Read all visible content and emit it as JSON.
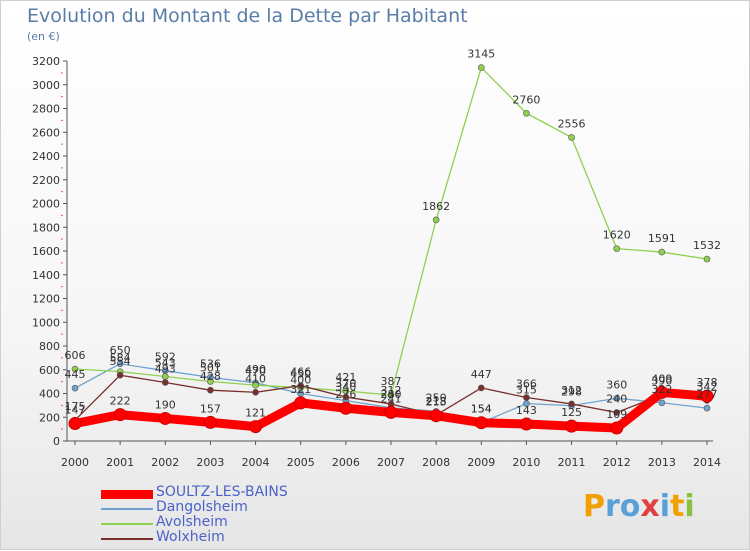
{
  "title": "Evolution du Montant de la Dette par Habitant",
  "unit_label": "(en €)",
  "logo": {
    "letters": [
      "P",
      "r",
      "o",
      "x",
      "i",
      "t",
      "i"
    ],
    "colors": [
      "#f0a000",
      "#5aa0d8",
      "#5aa0d8",
      "#e04040",
      "#5aa0d8",
      "#f0a000",
      "#8cc040"
    ]
  },
  "chart_data": {
    "type": "line",
    "title": "Evolution du Montant de la Dette par Habitant",
    "ylabel": "(en €)",
    "xlabel": "",
    "x": [
      "2000",
      "2001",
      "2002",
      "2003",
      "2004",
      "2005",
      "2006",
      "2007",
      "2008",
      "2009",
      "2010",
      "2011",
      "2012",
      "2013",
      "2014"
    ],
    "yticks": [
      0,
      200,
      400,
      600,
      800,
      1000,
      1200,
      1400,
      1600,
      1800,
      2000,
      2200,
      2400,
      2600,
      2800,
      3000,
      3200
    ],
    "ylim": [
      0,
      3200
    ],
    "grid": false,
    "legend_position": "bottom-left",
    "series": [
      {
        "name": "SOULTZ-LES-BAINS",
        "color": "#ff0000",
        "emphasis": true,
        "values": [
          147,
          222,
          190,
          157,
          121,
          321,
          276,
          241,
          213,
          154,
          143,
          125,
          109,
          409,
          378
        ],
        "labels": [
          "147",
          "222",
          "190",
          "157",
          "121",
          "321",
          "276",
          "241",
          "213",
          "154",
          "143",
          "125",
          "109",
          "409",
          "378"
        ]
      },
      {
        "name": "Dangolsheim",
        "color": "#6fa3cf",
        "values": [
          445,
          650,
          592,
          536,
          490,
          400,
          340,
          280,
          250,
          154,
          315,
          298,
          360,
          322,
          277
        ],
        "labels": [
          "445",
          "650",
          "592",
          "536",
          "490",
          "400",
          "340",
          "280",
          "250",
          "154",
          "315",
          "298",
          "360",
          "322",
          "277"
        ]
      },
      {
        "name": "Avolsheim",
        "color": "#8fd14f",
        "values": [
          606,
          584,
          543,
          501,
          470,
          450,
          421,
          387,
          1862,
          3145,
          2760,
          2556,
          1620,
          1591,
          1532
        ],
        "labels": [
          "606",
          "584",
          "543",
          "501",
          "470",
          "450",
          "421",
          "387",
          "1862",
          "3145",
          "2760",
          "2556",
          "1620",
          "1591",
          "1532"
        ]
      },
      {
        "name": "Wolxheim",
        "color": "#7a2f2f",
        "values": [
          175,
          554,
          493,
          428,
          410,
          466,
          370,
          312,
          218,
          447,
          366,
          312,
          240,
          390,
          342
        ],
        "labels": [
          "175",
          "554",
          "493",
          "428",
          "410",
          "466",
          "370",
          "312",
          "218",
          "447",
          "366",
          "312",
          "240",
          "390",
          "342"
        ]
      }
    ]
  }
}
